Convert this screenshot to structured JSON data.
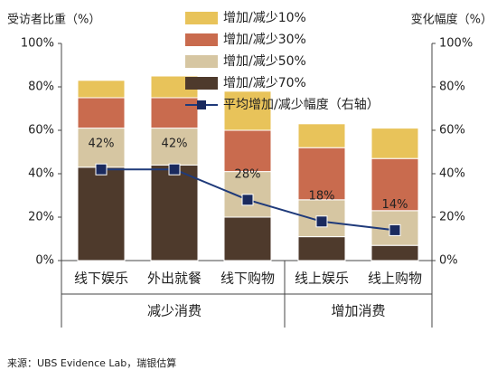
{
  "chart_data": {
    "type": "bar",
    "y_axis_label": "受访者比重（%）",
    "y2_axis_label": "变化幅度（%）",
    "categories": [
      "线下娱乐",
      "外出就餐",
      "线下购物",
      "线上娱乐",
      "线上购物"
    ],
    "groups": [
      {
        "name": "减少消费",
        "members": [
          "线下娱乐",
          "外出就餐",
          "线下购物"
        ]
      },
      {
        "name": "增加消费",
        "members": [
          "线上娱乐",
          "线上购物"
        ]
      }
    ],
    "series": [
      {
        "name": "增加/减少10%",
        "color": "#e8c35a",
        "values": [
          8,
          10,
          18,
          11,
          14
        ]
      },
      {
        "name": "增加/减少30%",
        "color": "#c96b4e",
        "values": [
          14,
          14,
          19,
          24,
          24
        ]
      },
      {
        "name": "增加/减少50%",
        "color": "#d6c6a2",
        "values": [
          18,
          17,
          21,
          17,
          16
        ]
      },
      {
        "name": "增加/减少70%",
        "color": "#4e3a2c",
        "values": [
          43,
          44,
          20,
          11,
          7
        ]
      },
      {
        "name": "平均增加/减少幅度（右轴）",
        "type": "line",
        "axis": "y2",
        "color": "#1f3a7a",
        "values": [
          42,
          42,
          28,
          18,
          14
        ],
        "value_labels": [
          "42%",
          "42%",
          "28%",
          "18%",
          "14%"
        ]
      }
    ],
    "ylim": [
      0,
      100
    ],
    "yticks": [
      {
        "value": 0,
        "label": "0%"
      },
      {
        "value": 20,
        "label": "20%"
      },
      {
        "value": 40,
        "label": "40%"
      },
      {
        "value": 60,
        "label": "60%"
      },
      {
        "value": 80,
        "label": "80%"
      },
      {
        "value": 100,
        "label": "100%"
      }
    ],
    "y2lim": [
      0,
      100
    ],
    "y2ticks": [
      {
        "value": 0,
        "label": "0%"
      },
      {
        "value": 20,
        "label": "20%"
      },
      {
        "value": 40,
        "label": "40%"
      },
      {
        "value": 60,
        "label": "60%"
      },
      {
        "value": 80,
        "label": "80%"
      },
      {
        "value": 100,
        "label": "100%"
      }
    ],
    "source": "来源：UBS Evidence Lab，瑞银估算"
  }
}
